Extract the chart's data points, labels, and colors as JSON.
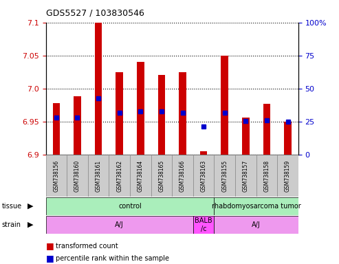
{
  "title": "GDS5527 / 103830546",
  "samples": [
    "GSM738156",
    "GSM738160",
    "GSM738161",
    "GSM738162",
    "GSM738164",
    "GSM738165",
    "GSM738166",
    "GSM738163",
    "GSM738155",
    "GSM738157",
    "GSM738158",
    "GSM738159"
  ],
  "bar_tops": [
    6.978,
    6.988,
    7.1,
    7.025,
    7.04,
    7.02,
    7.025,
    6.905,
    7.05,
    6.956,
    6.977,
    6.95
  ],
  "percentile_values": [
    6.956,
    6.956,
    6.985,
    6.963,
    6.965,
    6.965,
    6.963,
    6.942,
    6.963,
    6.951,
    6.952,
    6.95
  ],
  "ylim_left": [
    6.9,
    7.1
  ],
  "ylim_right": [
    0,
    100
  ],
  "yticks_left": [
    6.9,
    6.95,
    7.0,
    7.05,
    7.1
  ],
  "yticks_right": [
    0,
    25,
    50,
    75,
    100
  ],
  "bar_color": "#cc0000",
  "percentile_color": "#0000cc",
  "tissue_labels": [
    "control",
    "rhabdomyosarcoma tumor"
  ],
  "tissue_ranges": [
    [
      0,
      8
    ],
    [
      8,
      12
    ]
  ],
  "tissue_color": "#aaeebb",
  "strain_labels": [
    "A/J",
    "BALB\n/c",
    "A/J"
  ],
  "strain_ranges": [
    [
      0,
      7
    ],
    [
      7,
      8
    ],
    [
      8,
      12
    ]
  ],
  "strain_color": "#ee99ee",
  "strain_balb_color": "#ff55ff",
  "legend_items": [
    "transformed count",
    "percentile rank within the sample"
  ],
  "background_color": "#ffffff",
  "label_row_bg": "#cccccc",
  "bar_bottom": 6.9,
  "bar_width": 0.35
}
